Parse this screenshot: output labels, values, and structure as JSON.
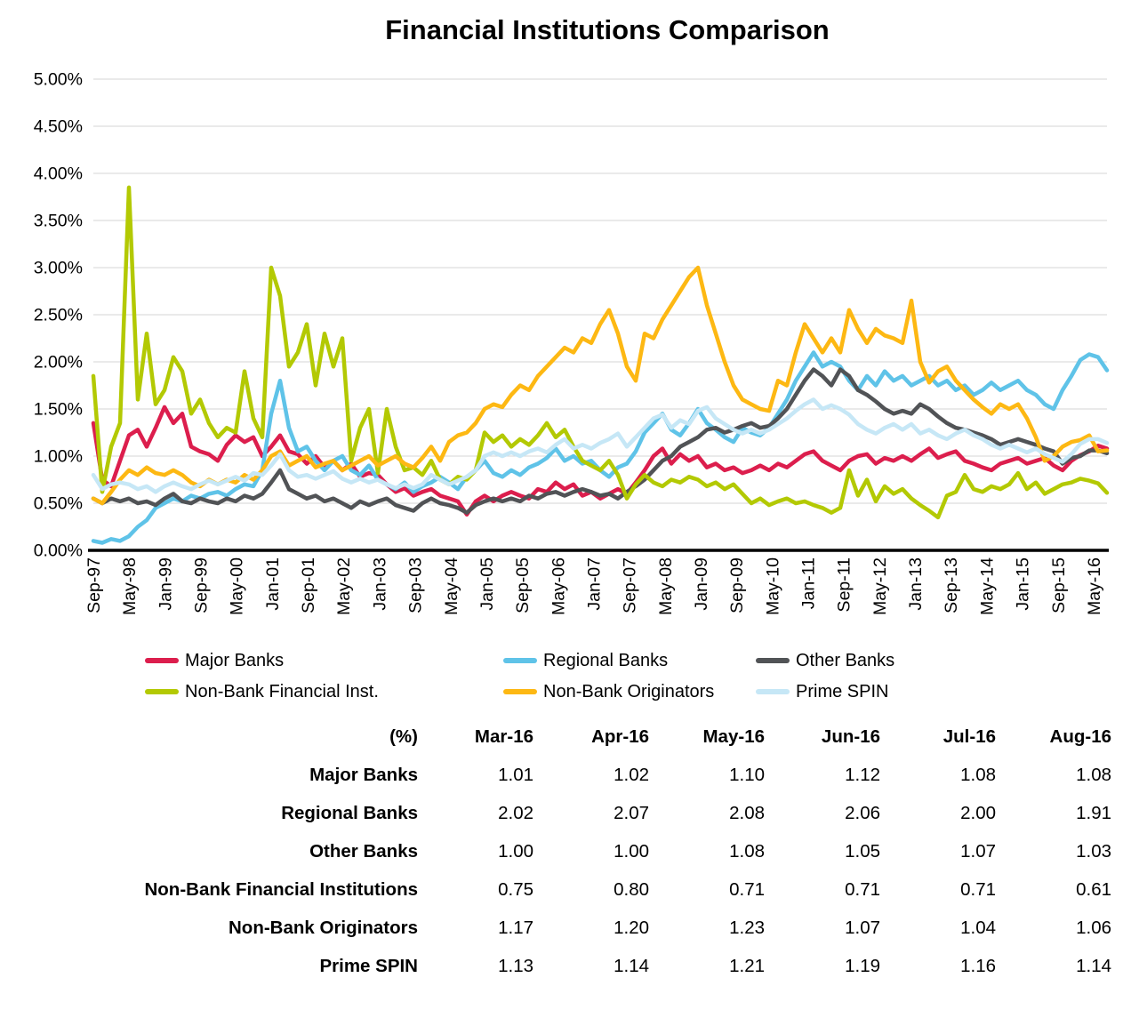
{
  "title": "Financial Institutions Comparison",
  "chart_data": {
    "type": "line",
    "title": "Financial Institutions Comparison",
    "xlabel": "",
    "ylabel": "",
    "ylim": [
      0,
      5
    ],
    "ytick_step": 0.5,
    "ytick_labels": [
      "0.00%",
      "0.50%",
      "1.00%",
      "1.50%",
      "2.00%",
      "2.50%",
      "3.00%",
      "3.50%",
      "4.00%",
      "4.50%",
      "5.00%"
    ],
    "xtick_labels": [
      "Sep-97",
      "May-98",
      "Jan-99",
      "Sep-99",
      "May-00",
      "Jan-01",
      "Sep-01",
      "May-02",
      "Jan-03",
      "Sep-03",
      "May-04",
      "Jan-05",
      "Sep-05",
      "May-06",
      "Jan-07",
      "Sep-07",
      "May-08",
      "Jan-09",
      "Sep-09",
      "May-10",
      "Jan-11",
      "Sep-11",
      "May-12",
      "Jan-13",
      "Sep-13",
      "May-14",
      "Jan-15",
      "Sep-15",
      "May-16"
    ],
    "xtick_every_months": 8,
    "x_range_months": [
      "Sep-97",
      "Aug-16"
    ],
    "grid": "horizontal",
    "legend_position": "bottom",
    "axis_color": "#000000",
    "gridline_color": "#d6d6d6",
    "series": [
      {
        "name": "Major Banks",
        "color": "#dc1e4d",
        "values": [
          1.35,
          0.75,
          0.68,
          0.95,
          1.22,
          1.28,
          1.1,
          1.3,
          1.52,
          1.35,
          1.45,
          1.1,
          1.05,
          1.02,
          0.95,
          1.12,
          1.22,
          1.15,
          1.2,
          1.0,
          1.1,
          1.22,
          1.05,
          1.02,
          0.92,
          1.0,
          0.88,
          0.95,
          0.85,
          0.92,
          0.78,
          0.82,
          0.8,
          0.7,
          0.62,
          0.66,
          0.58,
          0.62,
          0.65,
          0.58,
          0.55,
          0.52,
          0.38,
          0.52,
          0.58,
          0.52,
          0.58,
          0.62,
          0.58,
          0.55,
          0.65,
          0.62,
          0.72,
          0.65,
          0.7,
          0.58,
          0.62,
          0.55,
          0.6,
          0.65,
          0.6,
          0.72,
          0.85,
          1.0,
          1.08,
          0.92,
          1.02,
          0.95,
          1.0,
          0.88,
          0.92,
          0.85,
          0.88,
          0.82,
          0.85,
          0.9,
          0.85,
          0.92,
          0.88,
          0.95,
          1.02,
          1.05,
          0.95,
          0.9,
          0.85,
          0.95,
          1.0,
          1.02,
          0.92,
          0.98,
          0.95,
          1.0,
          0.95,
          1.02,
          1.08,
          0.98,
          1.02,
          1.05,
          0.95,
          0.92,
          0.88,
          0.85,
          0.92,
          0.95,
          0.98,
          0.92,
          0.95,
          0.98,
          0.9,
          0.85,
          0.95,
          1.01,
          1.05,
          1.11,
          1.08
        ]
      },
      {
        "name": "Regional Banks",
        "color": "#5fc3e8",
        "values": [
          0.1,
          0.08,
          0.12,
          0.1,
          0.15,
          0.25,
          0.32,
          0.45,
          0.5,
          0.55,
          0.52,
          0.58,
          0.55,
          0.6,
          0.62,
          0.58,
          0.65,
          0.7,
          0.68,
          0.85,
          1.45,
          1.8,
          1.3,
          1.05,
          1.1,
          0.95,
          0.85,
          0.95,
          1.0,
          0.85,
          0.8,
          0.9,
          0.75,
          0.7,
          0.65,
          0.72,
          0.62,
          0.68,
          0.72,
          0.78,
          0.72,
          0.65,
          0.78,
          0.85,
          0.95,
          0.82,
          0.78,
          0.85,
          0.8,
          0.88,
          0.92,
          0.98,
          1.08,
          0.95,
          1.0,
          0.92,
          0.95,
          0.85,
          0.78,
          0.88,
          0.92,
          1.05,
          1.25,
          1.35,
          1.45,
          1.28,
          1.22,
          1.35,
          1.5,
          1.35,
          1.28,
          1.2,
          1.15,
          1.3,
          1.25,
          1.22,
          1.3,
          1.45,
          1.6,
          1.8,
          1.95,
          2.1,
          1.95,
          2.0,
          1.95,
          1.8,
          1.7,
          1.85,
          1.75,
          1.9,
          1.8,
          1.85,
          1.75,
          1.8,
          1.85,
          1.75,
          1.8,
          1.7,
          1.75,
          1.65,
          1.7,
          1.78,
          1.7,
          1.75,
          1.8,
          1.7,
          1.65,
          1.55,
          1.5,
          1.7,
          1.85,
          2.02,
          2.08,
          2.05,
          1.91
        ]
      },
      {
        "name": "Other Banks",
        "color": "#515356",
        "values": [
          0.55,
          0.5,
          0.55,
          0.52,
          0.55,
          0.5,
          0.52,
          0.48,
          0.55,
          0.6,
          0.52,
          0.5,
          0.55,
          0.52,
          0.5,
          0.55,
          0.52,
          0.58,
          0.55,
          0.6,
          0.72,
          0.85,
          0.65,
          0.6,
          0.55,
          0.58,
          0.52,
          0.55,
          0.5,
          0.45,
          0.52,
          0.48,
          0.52,
          0.55,
          0.48,
          0.45,
          0.42,
          0.5,
          0.55,
          0.5,
          0.48,
          0.45,
          0.4,
          0.48,
          0.52,
          0.55,
          0.52,
          0.55,
          0.52,
          0.58,
          0.55,
          0.6,
          0.62,
          0.58,
          0.62,
          0.65,
          0.62,
          0.58,
          0.6,
          0.55,
          0.62,
          0.68,
          0.75,
          0.85,
          0.95,
          1.0,
          1.1,
          1.15,
          1.2,
          1.28,
          1.3,
          1.25,
          1.28,
          1.32,
          1.35,
          1.3,
          1.32,
          1.4,
          1.5,
          1.65,
          1.8,
          1.92,
          1.85,
          1.75,
          1.92,
          1.85,
          1.7,
          1.65,
          1.58,
          1.5,
          1.45,
          1.48,
          1.45,
          1.55,
          1.5,
          1.42,
          1.35,
          1.3,
          1.28,
          1.25,
          1.22,
          1.18,
          1.12,
          1.15,
          1.18,
          1.15,
          1.12,
          1.08,
          1.05,
          0.92,
          0.98,
          1.0,
          1.06,
          1.06,
          1.03
        ]
      },
      {
        "name": "Non-Bank Financial Inst.",
        "color": "#b3c903",
        "values": [
          1.85,
          0.62,
          1.1,
          1.35,
          3.85,
          1.6,
          2.3,
          1.55,
          1.7,
          2.05,
          1.9,
          1.45,
          1.6,
          1.35,
          1.2,
          1.3,
          1.25,
          1.9,
          1.4,
          1.2,
          3.0,
          2.7,
          1.95,
          2.1,
          2.4,
          1.75,
          2.3,
          1.95,
          2.25,
          0.95,
          1.3,
          1.5,
          0.82,
          1.5,
          1.1,
          0.85,
          0.88,
          0.8,
          0.95,
          0.75,
          0.7,
          0.78,
          0.75,
          0.85,
          1.25,
          1.15,
          1.22,
          1.1,
          1.18,
          1.12,
          1.22,
          1.35,
          1.2,
          1.28,
          1.1,
          0.95,
          0.9,
          0.85,
          0.95,
          0.8,
          0.55,
          0.7,
          0.8,
          0.72,
          0.68,
          0.75,
          0.72,
          0.78,
          0.75,
          0.68,
          0.72,
          0.65,
          0.7,
          0.6,
          0.5,
          0.55,
          0.48,
          0.52,
          0.55,
          0.5,
          0.52,
          0.48,
          0.45,
          0.4,
          0.45,
          0.85,
          0.58,
          0.75,
          0.52,
          0.68,
          0.6,
          0.65,
          0.55,
          0.48,
          0.42,
          0.35,
          0.58,
          0.62,
          0.8,
          0.65,
          0.62,
          0.68,
          0.65,
          0.7,
          0.82,
          0.65,
          0.72,
          0.6,
          0.65,
          0.7,
          0.72,
          0.76,
          0.74,
          0.71,
          0.61
        ]
      },
      {
        "name": "Non-Bank Originators",
        "color": "#fdb813",
        "values": [
          0.55,
          0.5,
          0.62,
          0.75,
          0.85,
          0.8,
          0.88,
          0.82,
          0.8,
          0.85,
          0.8,
          0.72,
          0.68,
          0.75,
          0.7,
          0.75,
          0.72,
          0.8,
          0.75,
          0.85,
          1.0,
          1.05,
          0.9,
          0.95,
          1.0,
          0.88,
          0.92,
          0.95,
          0.85,
          0.9,
          0.95,
          1.0,
          0.9,
          0.95,
          1.0,
          0.92,
          0.88,
          0.98,
          1.1,
          0.95,
          1.15,
          1.22,
          1.25,
          1.35,
          1.5,
          1.55,
          1.52,
          1.65,
          1.75,
          1.7,
          1.85,
          1.95,
          2.05,
          2.15,
          2.1,
          2.25,
          2.2,
          2.4,
          2.55,
          2.3,
          1.95,
          1.8,
          2.3,
          2.25,
          2.45,
          2.6,
          2.75,
          2.9,
          3.0,
          2.6,
          2.3,
          2.0,
          1.75,
          1.6,
          1.55,
          1.5,
          1.48,
          1.8,
          1.75,
          2.1,
          2.4,
          2.25,
          2.1,
          2.25,
          2.1,
          2.55,
          2.35,
          2.2,
          2.35,
          2.28,
          2.25,
          2.2,
          2.65,
          2.0,
          1.78,
          1.9,
          1.95,
          1.8,
          1.7,
          1.6,
          1.52,
          1.45,
          1.55,
          1.5,
          1.55,
          1.4,
          1.2,
          0.95,
          1.0,
          1.1,
          1.15,
          1.17,
          1.22,
          1.05,
          1.06
        ]
      },
      {
        "name": "Prime SPIN",
        "color": "#c6e7f6",
        "values": [
          0.8,
          0.65,
          0.7,
          0.72,
          0.7,
          0.65,
          0.68,
          0.62,
          0.68,
          0.72,
          0.68,
          0.65,
          0.7,
          0.74,
          0.7,
          0.74,
          0.78,
          0.74,
          0.82,
          0.8,
          0.9,
          1.02,
          0.85,
          0.78,
          0.8,
          0.76,
          0.8,
          0.84,
          0.76,
          0.72,
          0.76,
          0.72,
          0.75,
          0.7,
          0.66,
          0.7,
          0.66,
          0.7,
          0.8,
          0.75,
          0.7,
          0.74,
          0.78,
          0.85,
          1.0,
          1.04,
          1.0,
          1.04,
          1.0,
          1.05,
          1.08,
          1.04,
          1.12,
          1.18,
          1.08,
          1.12,
          1.08,
          1.14,
          1.18,
          1.24,
          1.1,
          1.2,
          1.3,
          1.4,
          1.44,
          1.3,
          1.38,
          1.34,
          1.48,
          1.52,
          1.4,
          1.34,
          1.28,
          1.24,
          1.28,
          1.24,
          1.28,
          1.34,
          1.4,
          1.48,
          1.55,
          1.6,
          1.5,
          1.54,
          1.5,
          1.44,
          1.34,
          1.28,
          1.24,
          1.3,
          1.34,
          1.28,
          1.34,
          1.24,
          1.28,
          1.22,
          1.18,
          1.24,
          1.28,
          1.22,
          1.18,
          1.12,
          1.08,
          1.12,
          1.08,
          1.04,
          1.08,
          1.02,
          0.98,
          0.94,
          1.02,
          1.13,
          1.18,
          1.18,
          1.14
        ]
      }
    ]
  },
  "table": {
    "unit_header": "(%)",
    "columns": [
      "Mar-16",
      "Apr-16",
      "May-16",
      "Jun-16",
      "Jul-16",
      "Aug-16"
    ],
    "rows": [
      {
        "label": "Major Banks",
        "values": [
          "1.01",
          "1.02",
          "1.10",
          "1.12",
          "1.08",
          "1.08"
        ]
      },
      {
        "label": "Regional Banks",
        "values": [
          "2.02",
          "2.07",
          "2.08",
          "2.06",
          "2.00",
          "1.91"
        ]
      },
      {
        "label": "Other Banks",
        "values": [
          "1.00",
          "1.00",
          "1.08",
          "1.05",
          "1.07",
          "1.03"
        ]
      },
      {
        "label": "Non-Bank Financial Institutions",
        "values": [
          "0.75",
          "0.80",
          "0.71",
          "0.71",
          "0.71",
          "0.61"
        ]
      },
      {
        "label": "Non-Bank Originators",
        "values": [
          "1.17",
          "1.20",
          "1.23",
          "1.07",
          "1.04",
          "1.06"
        ]
      },
      {
        "label": "Prime SPIN",
        "values": [
          "1.13",
          "1.14",
          "1.21",
          "1.19",
          "1.16",
          "1.14"
        ]
      }
    ]
  }
}
